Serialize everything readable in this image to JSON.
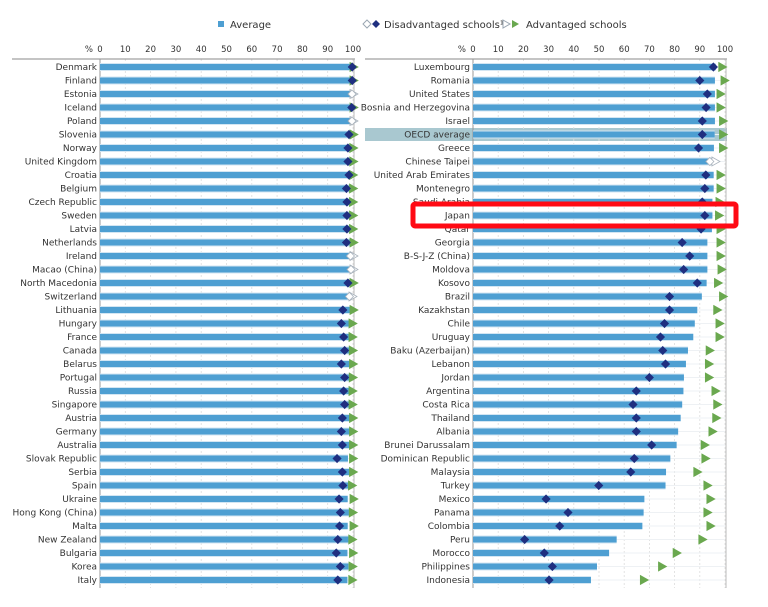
{
  "legend": {
    "average": "Average",
    "disadvantaged": "Disadvantaged schools¹",
    "advantaged": "Advantaged schools"
  },
  "colors": {
    "average": "#4e9fd2",
    "disadvantaged": "#1f2f80",
    "advantaged": "#6aa84f",
    "not_significant": "#c8d0d8",
    "highlight_row": "#a9c8d0",
    "annotation_box": "#ff0a14"
  },
  "annotation": {
    "highlighted_category": "Japan",
    "style": "red-rectangle"
  },
  "chart_data": [
    {
      "type": "bar",
      "orientation": "horizontal",
      "xlabel": "%",
      "xlim": [
        0,
        100
      ],
      "xticks": [
        0,
        10,
        20,
        30,
        40,
        50,
        60,
        70,
        80,
        90,
        100
      ],
      "grid": true,
      "legend_position": "top",
      "categories": [
        "Denmark",
        "Finland",
        "Estonia",
        "Iceland",
        "Poland",
        "Slovenia",
        "Norway",
        "United Kingdom",
        "Croatia",
        "Belgium",
        "Czech Republic",
        "Sweden",
        "Latvia",
        "Netherlands",
        "Ireland",
        "Macao (China)",
        "North Macedonia",
        "Switzerland",
        "Lithuania",
        "Hungary",
        "France",
        "Canada",
        "Belarus",
        "Portugal",
        "Russia",
        "Singapore",
        "Austria",
        "Germany",
        "Australia",
        "Slovak Republic",
        "Serbia",
        "Spain",
        "Ukraine",
        "Hong Kong (China)",
        "Malta",
        "New Zealand",
        "Bulgaria",
        "Korea",
        "Italy"
      ],
      "series": [
        {
          "name": "Average",
          "values": [
            99.9,
            99.9,
            99.8,
            99.8,
            99.8,
            99.6,
            99.5,
            99.5,
            99.6,
            99.3,
            99.3,
            99.3,
            99.3,
            99.2,
            99.6,
            99.6,
            99.4,
            99.3,
            98.9,
            98.8,
            99.0,
            99.0,
            98.7,
            99.0,
            98.9,
            99.0,
            98.8,
            98.7,
            98.8,
            98.0,
            98.6,
            98.6,
            97.9,
            98.4,
            97.9,
            98.2,
            97.8,
            98.2,
            97.8
          ]
        },
        {
          "name": "Disadvantaged schools¹",
          "values": [
            99.7,
            99.7,
            99.6,
            99.5,
            99.6,
            98.4,
            98.0,
            98.0,
            98.4,
            97.4,
            97.6,
            97.6,
            97.6,
            97.4,
            99.0,
            99.2,
            98.0,
            98.6,
            96.0,
            95.4,
            96.3,
            96.7,
            95.4,
            96.7,
            96.3,
            96.7,
            95.8,
            95.4,
            95.8,
            93.7,
            95.8,
            96.0,
            94.5,
            95.0,
            94.7,
            94.0,
            93.4,
            95.0,
            94.0
          ],
          "significant": [
            true,
            true,
            false,
            true,
            false,
            true,
            true,
            true,
            true,
            true,
            true,
            true,
            true,
            true,
            false,
            false,
            true,
            false,
            true,
            true,
            true,
            true,
            true,
            true,
            true,
            true,
            true,
            true,
            true,
            true,
            true,
            true,
            true,
            true,
            true,
            true,
            true,
            true,
            true
          ]
        },
        {
          "name": "Advantaged schools",
          "values": [
            100,
            100,
            100,
            100,
            100,
            100,
            99.9,
            99.9,
            99.8,
            99.8,
            99.8,
            99.8,
            99.8,
            100,
            100,
            100,
            100,
            99.6,
            100,
            99.6,
            99.6,
            99.7,
            99.8,
            99.7,
            99.6,
            99.6,
            99.8,
            99.8,
            99.8,
            99.8,
            99.8,
            99.4,
            100,
            99.7,
            100,
            99.5,
            99.8,
            99.6,
            99.5
          ],
          "significant": [
            true,
            true,
            false,
            true,
            false,
            true,
            true,
            true,
            true,
            true,
            true,
            true,
            true,
            true,
            false,
            false,
            true,
            false,
            true,
            true,
            true,
            true,
            true,
            true,
            true,
            true,
            true,
            true,
            true,
            true,
            true,
            true,
            true,
            true,
            true,
            true,
            true,
            true,
            true
          ]
        }
      ]
    },
    {
      "type": "bar",
      "orientation": "horizontal",
      "xlabel": "%",
      "xlim": [
        0,
        100
      ],
      "xticks": [
        0,
        10,
        20,
        30,
        40,
        50,
        60,
        70,
        80,
        90,
        100
      ],
      "grid": true,
      "highlight_row": "OECD average",
      "categories": [
        "Luxembourg",
        "Romania",
        "United States",
        "Bosnia and Herzegovina",
        "Israel",
        "OECD average",
        "Greece",
        "Chinese Taipei",
        "United Arab Emirates",
        "Montenegro",
        "Saudi Arabia",
        "Japan",
        "Qatar",
        "Georgia",
        "B-S-J-Z (China)",
        "Moldova",
        "Kosovo",
        "Brazil",
        "Kazakhstan",
        "Chile",
        "Uruguay",
        "Baku (Azerbaijan)",
        "Lebanon",
        "Jordan",
        "Argentina",
        "Costa Rica",
        "Thailand",
        "Albania",
        "Brunei Darussalam",
        "Dominican Republic",
        "Malaysia",
        "Turkey",
        "Mexico",
        "Panama",
        "Colombia",
        "Peru",
        "Morocco",
        "Philippines",
        "Indonesia"
      ],
      "series": [
        {
          "name": "Average",
          "values": [
            96.3,
            96.0,
            96.0,
            96.0,
            96.0,
            95.9,
            95.6,
            95.0,
            95.5,
            95.5,
            95.0,
            95.0,
            94.8,
            93.0,
            93.0,
            93.0,
            92.7,
            90.8,
            89.0,
            88.0,
            87.4,
            85.3,
            84.5,
            83.7,
            83.5,
            83.0,
            82.4,
            81.4,
            80.8,
            78.3,
            76.6,
            76.4,
            68.0,
            67.7,
            67.2,
            57.0,
            54.0,
            49.2,
            46.8
          ]
        },
        {
          "name": "Disadvantaged schools¹",
          "values": [
            95.4,
            90.0,
            93.0,
            92.5,
            91.0,
            91.0,
            89.5,
            94.0,
            92.4,
            92.0,
            91.0,
            92.0,
            90.5,
            83.0,
            86.0,
            83.6,
            89.0,
            78.0,
            78.0,
            76.0,
            74.4,
            75.3,
            76.4,
            70.0,
            64.8,
            63.5,
            64.8,
            64.8,
            70.9,
            64.0,
            62.6,
            49.9,
            29.0,
            37.7,
            34.4,
            20.5,
            28.3,
            31.5,
            30.2
          ],
          "significant": [
            true,
            true,
            true,
            true,
            true,
            true,
            true,
            false,
            true,
            true,
            true,
            true,
            true,
            true,
            true,
            true,
            true,
            true,
            true,
            true,
            true,
            true,
            true,
            true,
            true,
            true,
            true,
            true,
            true,
            true,
            true,
            true,
            true,
            true,
            true,
            true,
            true,
            true,
            true
          ]
        },
        {
          "name": "Advantaged schools",
          "values": [
            98.7,
            99.6,
            98.0,
            98.0,
            99.0,
            99.0,
            99.0,
            96.0,
            98.0,
            98.0,
            97.6,
            97.4,
            98.0,
            98.0,
            98.0,
            98.4,
            97.0,
            99.0,
            96.7,
            97.6,
            97.6,
            93.7,
            93.4,
            93.4,
            96.0,
            96.7,
            96.3,
            94.8,
            91.7,
            92.0,
            88.8,
            92.8,
            94.0,
            92.8,
            94.0,
            90.8,
            80.6,
            74.8,
            67.6
          ],
          "significant": [
            true,
            true,
            true,
            true,
            true,
            true,
            true,
            false,
            true,
            true,
            true,
            true,
            true,
            true,
            true,
            true,
            true,
            true,
            true,
            true,
            true,
            true,
            true,
            true,
            true,
            true,
            true,
            true,
            true,
            true,
            true,
            true,
            true,
            true,
            true,
            true,
            true,
            true,
            true
          ]
        }
      ]
    }
  ]
}
